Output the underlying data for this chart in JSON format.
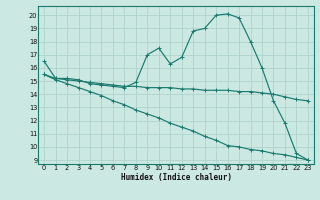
{
  "xlabel": "Humidex (Indice chaleur)",
  "xlim": [
    -0.5,
    23.5
  ],
  "ylim": [
    8.7,
    20.7
  ],
  "ytick_vals": [
    9,
    10,
    11,
    12,
    13,
    14,
    15,
    16,
    17,
    18,
    19,
    20
  ],
  "xtick_vals": [
    0,
    1,
    2,
    3,
    4,
    5,
    6,
    7,
    8,
    9,
    10,
    11,
    12,
    13,
    14,
    15,
    16,
    17,
    18,
    19,
    20,
    21,
    22,
    23
  ],
  "bg_color": "#cce8e3",
  "grid_color": "#aacfca",
  "line_color": "#1a7a6e",
  "curve1_x": [
    0,
    1,
    2,
    3,
    4,
    5,
    6,
    7,
    8,
    9,
    10,
    11,
    12,
    13,
    14,
    15,
    16,
    17,
    18,
    19,
    20,
    21,
    22,
    23
  ],
  "curve1_y": [
    16.5,
    15.2,
    15.2,
    15.1,
    14.8,
    14.7,
    14.6,
    14.5,
    14.9,
    17.0,
    17.5,
    16.3,
    16.8,
    18.8,
    19.0,
    20.0,
    20.1,
    19.8,
    18.0,
    16.0,
    13.5,
    11.8,
    9.5,
    9.0
  ],
  "curve2_x": [
    0,
    1,
    2,
    3,
    4,
    5,
    6,
    7,
    8,
    9,
    10,
    11,
    12,
    13,
    14,
    15,
    16,
    17,
    18,
    19,
    20,
    21,
    22,
    23
  ],
  "curve2_y": [
    15.5,
    15.2,
    15.1,
    15.0,
    14.9,
    14.8,
    14.7,
    14.6,
    14.6,
    14.5,
    14.5,
    14.5,
    14.4,
    14.4,
    14.3,
    14.3,
    14.3,
    14.2,
    14.2,
    14.1,
    14.0,
    13.8,
    13.6,
    13.5
  ],
  "curve3_x": [
    0,
    1,
    2,
    3,
    4,
    5,
    6,
    7,
    8,
    9,
    10,
    11,
    12,
    13,
    14,
    15,
    16,
    17,
    18,
    19,
    20,
    21,
    22,
    23
  ],
  "curve3_y": [
    15.5,
    15.1,
    14.8,
    14.5,
    14.2,
    13.9,
    13.5,
    13.2,
    12.8,
    12.5,
    12.2,
    11.8,
    11.5,
    11.2,
    10.8,
    10.5,
    10.1,
    10.0,
    9.8,
    9.7,
    9.5,
    9.4,
    9.2,
    9.0
  ]
}
